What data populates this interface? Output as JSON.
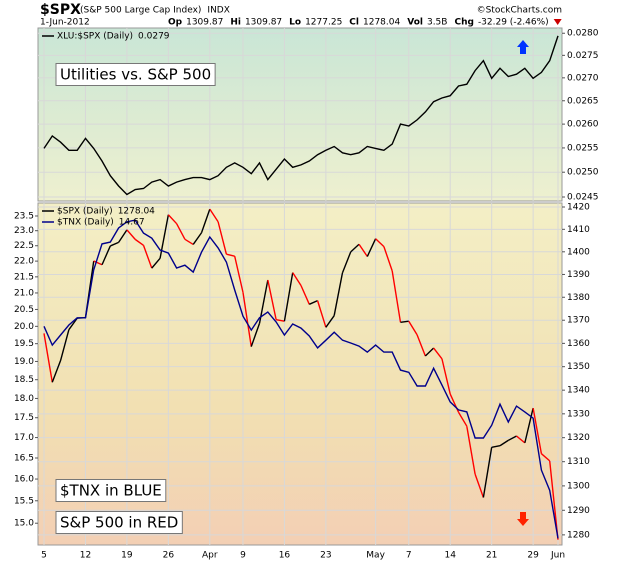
{
  "header": {
    "symbol": "$SPX",
    "description": "(S&P 500 Large Cap Index)",
    "exchange": "INDX",
    "date": "1-Jun-2012",
    "quote": [
      {
        "label": "Op",
        "value": 1309.87
      },
      {
        "label": "Hi",
        "value": 1309.87
      },
      {
        "label": "Lo",
        "value": 1277.25
      },
      {
        "label": "Cl",
        "value": 1278.04
      },
      {
        "label": "Vol",
        "value": "3.5B"
      },
      {
        "label": "Chg",
        "value": "-32.29 (-2.46%)"
      }
    ],
    "credit": "©StockCharts.com"
  },
  "chart_data": [
    {
      "type": "line",
      "log_scale": true,
      "grid": true,
      "annotation": {
        "text": "Utilities vs. S&P 500",
        "color": "#0000cc"
      },
      "series": [
        {
          "name": "XLU:$SPX (Daily)",
          "last": 0.0279,
          "color": "#000000",
          "values": [
            0.02549,
            0.02575,
            0.02562,
            0.02545,
            0.02545,
            0.0257,
            0.02549,
            0.02523,
            0.02493,
            0.02472,
            0.02455,
            0.02465,
            0.02467,
            0.0248,
            0.02485,
            0.02472,
            0.0248,
            0.02485,
            0.02489,
            0.02489,
            0.02485,
            0.02493,
            0.0251,
            0.02519,
            0.0251,
            0.02497,
            0.02519,
            0.02485,
            0.02506,
            0.02527,
            0.0251,
            0.02515,
            0.02523,
            0.02536,
            0.02545,
            0.02553,
            0.0254,
            0.02536,
            0.0254,
            0.02553,
            0.02549,
            0.02545,
            0.02558,
            0.026,
            0.02596,
            0.02609,
            0.02626,
            0.02648,
            0.02656,
            0.02661,
            0.02682,
            0.02686,
            0.02716,
            0.02738,
            0.02699,
            0.02721,
            0.02703,
            0.02708,
            0.02721,
            0.02699,
            0.02712,
            0.02738,
            0.02794
          ]
        }
      ],
      "ylim": [
        0.02442,
        0.02812
      ],
      "yticks": [
        0.0245,
        {
          "value": 0.025,
          "label": "0.0250"
        },
        0.0255,
        {
          "value": 0.026,
          "label": "0.0260"
        },
        0.0265,
        {
          "value": 0.027,
          "label": "0.0270"
        },
        0.0275,
        {
          "value": 0.028,
          "label": "0.0280"
        }
      ]
    },
    {
      "type": "line",
      "log_scale": true,
      "grid": true,
      "categories": [
        "5",
        null,
        null,
        null,
        null,
        "12",
        null,
        null,
        null,
        null,
        "19",
        null,
        null,
        null,
        null,
        "26",
        null,
        null,
        null,
        null,
        "Apr",
        null,
        null,
        null,
        "9",
        null,
        null,
        null,
        null,
        "16",
        null,
        null,
        null,
        null,
        "23",
        null,
        null,
        null,
        null,
        null,
        "May",
        null,
        null,
        null,
        "7",
        null,
        null,
        null,
        null,
        "14",
        null,
        null,
        null,
        null,
        "21",
        null,
        null,
        null,
        null,
        "29",
        null,
        null,
        "Jun"
      ],
      "annotations": [
        {
          "text": "$TNX in BLUE",
          "color": "#0000cc"
        },
        {
          "text": "S&P 500 in RED",
          "color": "#ff0000"
        }
      ],
      "series": [
        {
          "name": "$SPX (Daily)",
          "last": 1278.04,
          "axis": "y2",
          "color": "#000000",
          "down_color": "#ff0000",
          "values": [
            1364.33,
            1343.36,
            1352.63,
            1365.91,
            1370.87,
            1371.09,
            1395.95,
            1394.28,
            1402.6,
            1404.17,
            1409.75,
            1405.52,
            1402.89,
            1392.78,
            1397.11,
            1416.51,
            1412.52,
            1405.54,
            1403.28,
            1408.47,
            1419.04,
            1413.38,
            1398.96,
            1398.08,
            1382.2,
            1358.59,
            1368.71,
            1387.57,
            1370.26,
            1369.57,
            1390.78,
            1385.14,
            1376.92,
            1378.53,
            1366.94,
            1371.97,
            1390.69,
            1399.98,
            1403.36,
            1397.91,
            1405.82,
            1402.31,
            1391.57,
            1369.1,
            1369.58,
            1363.72,
            1354.58,
            1357.99,
            1353.39,
            1338.35,
            1330.66,
            1324.8,
            1304.86,
            1295.22,
            1315.99,
            1316.63,
            1318.86,
            1320.68,
            1317.82,
            1332.42,
            1313.32,
            1310.33,
            1278.04
          ]
        },
        {
          "name": "$TNX (Daily)",
          "last": 14.67,
          "color": "#00008b",
          "values": [
            20.0,
            19.46,
            19.75,
            20.04,
            20.25,
            20.25,
            21.72,
            22.56,
            22.62,
            23.09,
            23.3,
            23.36,
            22.92,
            22.75,
            22.36,
            22.26,
            21.78,
            21.87,
            21.65,
            22.29,
            22.79,
            22.43,
            21.97,
            21.09,
            20.3,
            19.89,
            20.25,
            20.42,
            20.13,
            19.75,
            20.07,
            19.95,
            19.72,
            19.38,
            19.6,
            19.83,
            19.6,
            19.52,
            19.43,
            19.26,
            19.46,
            19.26,
            19.26,
            18.76,
            18.7,
            18.33,
            18.33,
            18.81,
            18.36,
            17.91,
            17.7,
            17.65,
            16.99,
            16.99,
            17.31,
            17.85,
            17.39,
            17.8,
            17.65,
            17.49,
            16.21,
            15.74,
            14.67
          ]
        }
      ],
      "ylim": [
        14.53,
        23.95
      ],
      "yticks": [
        {
          "value": 15,
          "label": "15.0"
        },
        15.5,
        {
          "value": 16,
          "label": "16.0"
        },
        16.5,
        {
          "value": 17,
          "label": "17.0"
        },
        17.5,
        {
          "value": 18,
          "label": "18.0"
        },
        18.5,
        {
          "value": 19,
          "label": "19.0"
        },
        19.5,
        {
          "value": 20,
          "label": "20.0"
        },
        20.5,
        {
          "value": 21,
          "label": "21.0"
        },
        21.5,
        {
          "value": 22,
          "label": "22.0"
        },
        22.5,
        {
          "value": 23,
          "label": "23.0"
        },
        23.5
      ],
      "y2lim": [
        1275.9,
        1421.8
      ],
      "y2ticks": [
        1280,
        1290,
        1300,
        1310,
        1320,
        1330,
        1340,
        1350,
        1360,
        1370,
        1380,
        1390,
        1400,
        1410,
        1420
      ]
    }
  ]
}
